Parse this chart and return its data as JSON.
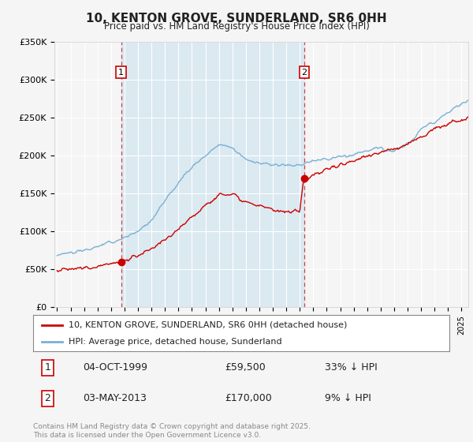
{
  "title": "10, KENTON GROVE, SUNDERLAND, SR6 0HH",
  "subtitle": "Price paid vs. HM Land Registry's House Price Index (HPI)",
  "legend_line1": "10, KENTON GROVE, SUNDERLAND, SR6 0HH (detached house)",
  "legend_line2": "HPI: Average price, detached house, Sunderland",
  "annotation1_label": "1",
  "annotation1_date": "04-OCT-1999",
  "annotation1_price": "£59,500",
  "annotation1_hpi": "33% ↓ HPI",
  "annotation2_label": "2",
  "annotation2_date": "03-MAY-2013",
  "annotation2_price": "£170,000",
  "annotation2_hpi": "9% ↓ HPI",
  "footer": "Contains HM Land Registry data © Crown copyright and database right 2025.\nThis data is licensed under the Open Government Licence v3.0.",
  "color_red": "#cc0000",
  "color_blue": "#7ab0d4",
  "bg_color": "#f0f4f8",
  "shade_color": "#d0e4f0",
  "ylim": [
    0,
    350000
  ],
  "yticks": [
    0,
    50000,
    100000,
    150000,
    200000,
    250000,
    300000,
    350000
  ],
  "ytick_labels": [
    "£0",
    "£50K",
    "£100K",
    "£150K",
    "£200K",
    "£250K",
    "£300K",
    "£350K"
  ],
  "sale1_x": 1999.75,
  "sale1_y": 59500,
  "sale2_x": 2013.33,
  "sale2_y": 170000,
  "xmin": 1994.8,
  "xmax": 2025.5,
  "hpi_knots": [
    1995,
    1996,
    1997,
    1998,
    1999,
    2000,
    2001,
    2002,
    2003,
    2004,
    2005,
    2006,
    2007,
    2008,
    2009,
    2010,
    2011,
    2012,
    2013,
    2014,
    2015,
    2016,
    2017,
    2018,
    2019,
    2020,
    2021,
    2022,
    2023,
    2024,
    2025,
    2025.5
  ],
  "hpi_vals": [
    70000,
    72000,
    75000,
    80000,
    85000,
    92000,
    100000,
    115000,
    140000,
    165000,
    185000,
    200000,
    215000,
    210000,
    195000,
    190000,
    188000,
    186000,
    188000,
    193000,
    195000,
    198000,
    202000,
    207000,
    210000,
    205000,
    215000,
    235000,
    245000,
    258000,
    268000,
    272000
  ],
  "red_knots": [
    1995,
    1996,
    1997,
    1998,
    1999,
    1999.75,
    2000,
    2001,
    2002,
    2003,
    2004,
    2005,
    2006,
    2007,
    2008,
    2009,
    2010,
    2011,
    2012,
    2013.0,
    2013.33,
    2014,
    2015,
    2016,
    2017,
    2018,
    2019,
    2020,
    2021,
    2022,
    2023,
    2024,
    2025,
    2025.5
  ],
  "red_vals": [
    49000,
    50000,
    52000,
    55000,
    58000,
    59500,
    62000,
    68000,
    76000,
    88000,
    105000,
    120000,
    135000,
    148000,
    150000,
    140000,
    133000,
    128000,
    125000,
    125000,
    170000,
    175000,
    182000,
    188000,
    193000,
    200000,
    205000,
    208000,
    215000,
    225000,
    235000,
    242000,
    248000,
    248000
  ]
}
